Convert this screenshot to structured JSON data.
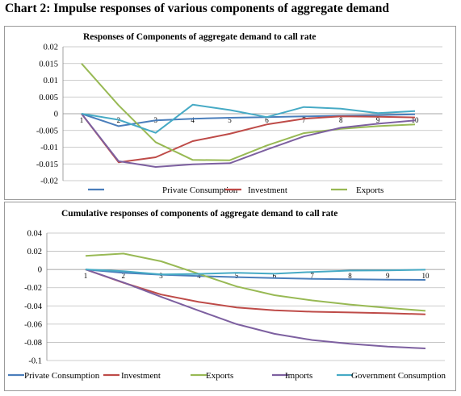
{
  "page_title": "Chart 2: Impulse responses of various components of aggregate demand",
  "chart_data": [
    {
      "type": "line",
      "title": "Responses of Components of aggregate demand to call rate",
      "xlabel": "",
      "ylabel": "",
      "x": [
        1,
        2,
        3,
        4,
        5,
        6,
        7,
        8,
        9,
        10
      ],
      "y_ticks": [
        "0.02",
        "0.015",
        "0.01",
        "0.005",
        "0",
        "-0.005",
        "-0.01",
        "-0.015",
        "-0.02"
      ],
      "ylim": [
        -0.02,
        0.02
      ],
      "grid": true,
      "legend_position": "bottom",
      "legend": [
        "Private Consumption",
        "Investment",
        "Exports"
      ],
      "series": [
        {
          "name": "Private Consumption",
          "color": "#4a7ebb",
          "legend": true,
          "values": [
            0,
            -0.0037,
            -0.002,
            -0.0015,
            -0.0012,
            -0.001,
            -0.0008,
            -0.0006,
            -0.0004,
            -0.0002
          ]
        },
        {
          "name": "Investment",
          "color": "#be4b48",
          "legend": true,
          "values": [
            0,
            -0.0145,
            -0.013,
            -0.0082,
            -0.006,
            -0.0032,
            -0.0015,
            -0.0008,
            -0.0009,
            -0.0011
          ]
        },
        {
          "name": "Exports",
          "color": "#98b954",
          "legend": true,
          "values": [
            0.015,
            0.0025,
            -0.0085,
            -0.0138,
            -0.0139,
            -0.0095,
            -0.0058,
            -0.0045,
            -0.0037,
            -0.0032
          ]
        },
        {
          "name": "",
          "color": "#7d60a0",
          "legend": false,
          "values": [
            0,
            -0.0142,
            -0.0159,
            -0.0151,
            -0.0148,
            -0.0107,
            -0.0068,
            -0.0042,
            -0.003,
            -0.002
          ]
        },
        {
          "name": "",
          "color": "#46aac5",
          "legend": false,
          "values": [
            0,
            -0.0018,
            -0.0057,
            0.0027,
            0.0011,
            -0.001,
            0.002,
            0.0015,
            0.0002,
            0.0008
          ]
        }
      ]
    },
    {
      "type": "line",
      "title": "Cumulative responses of components of aggregate demand to call rate",
      "xlabel": "",
      "ylabel": "",
      "x": [
        1,
        2,
        3,
        4,
        5,
        6,
        7,
        8,
        9,
        10
      ],
      "y_ticks": [
        "0.04",
        "0.02",
        "0",
        "-0.02",
        "-0.04",
        "-0.06",
        "-0.08",
        "-0.1"
      ],
      "ylim": [
        -0.1,
        0.04
      ],
      "grid": true,
      "legend_position": "bottom",
      "legend": [
        "Private Consumption",
        "Investment",
        "Exports",
        "Imports",
        "Government Consumption"
      ],
      "series": [
        {
          "name": "Private Consumption",
          "color": "#4a7ebb",
          "legend": true,
          "values": [
            0,
            -0.0037,
            -0.0057,
            -0.0072,
            -0.0084,
            -0.0094,
            -0.0102,
            -0.0108,
            -0.0112,
            -0.0114
          ]
        },
        {
          "name": "Investment",
          "color": "#be4b48",
          "legend": true,
          "values": [
            0,
            -0.0145,
            -0.0275,
            -0.0357,
            -0.0417,
            -0.0449,
            -0.0464,
            -0.0472,
            -0.0481,
            -0.0492
          ]
        },
        {
          "name": "Exports",
          "color": "#98b954",
          "legend": true,
          "values": [
            0.015,
            0.0175,
            0.009,
            -0.0048,
            -0.0187,
            -0.0282,
            -0.034,
            -0.0385,
            -0.0422,
            -0.0454
          ]
        },
        {
          "name": "Imports",
          "color": "#7d60a0",
          "legend": true,
          "values": [
            0,
            -0.0142,
            -0.0301,
            -0.0452,
            -0.06,
            -0.0707,
            -0.0775,
            -0.0817,
            -0.0847,
            -0.0867
          ]
        },
        {
          "name": "Government Consumption",
          "color": "#46aac5",
          "legend": true,
          "values": [
            0,
            -0.0018,
            -0.0055,
            -0.0048,
            -0.0037,
            -0.0047,
            -0.0027,
            -0.0012,
            -0.001,
            -0.0002
          ]
        }
      ]
    }
  ]
}
